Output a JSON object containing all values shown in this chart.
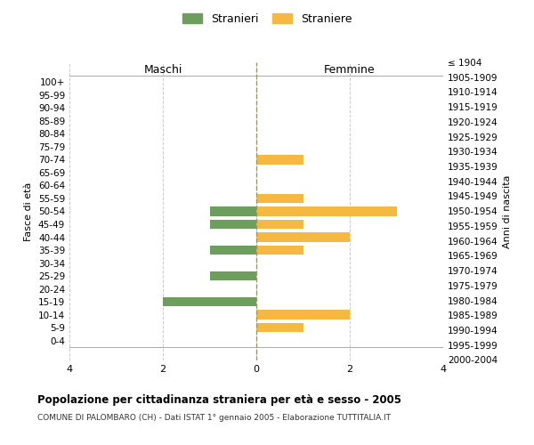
{
  "age_groups": [
    "100+",
    "95-99",
    "90-94",
    "85-89",
    "80-84",
    "75-79",
    "70-74",
    "65-69",
    "60-64",
    "55-59",
    "50-54",
    "45-49",
    "40-44",
    "35-39",
    "30-34",
    "25-29",
    "20-24",
    "15-19",
    "10-14",
    "5-9",
    "0-4"
  ],
  "birth_years": [
    "≤ 1904",
    "1905-1909",
    "1910-1914",
    "1915-1919",
    "1920-1924",
    "1925-1929",
    "1930-1934",
    "1935-1939",
    "1940-1944",
    "1945-1949",
    "1950-1954",
    "1955-1959",
    "1960-1964",
    "1965-1969",
    "1970-1974",
    "1975-1979",
    "1980-1984",
    "1985-1989",
    "1990-1994",
    "1995-1999",
    "2000-2004"
  ],
  "males": [
    0,
    0,
    0,
    0,
    0,
    0,
    0,
    0,
    0,
    0,
    -1,
    -1,
    0,
    -1,
    0,
    -1,
    0,
    -2,
    0,
    0,
    0
  ],
  "females": [
    0,
    0,
    0,
    0,
    0,
    0,
    1,
    0,
    0,
    1,
    3,
    1,
    2,
    1,
    0,
    0,
    0,
    0,
    2,
    1,
    0
  ],
  "male_color": "#6e9e5e",
  "female_color": "#f5b942",
  "xlim": [
    -4,
    4
  ],
  "xticks": [
    -4,
    -2,
    0,
    2,
    4
  ],
  "xticklabels": [
    "4",
    "2",
    "0",
    "2",
    "4"
  ],
  "title": "Popolazione per cittadinanza straniera per età e sesso - 2005",
  "subtitle": "COMUNE DI PALOMBARO (CH) - Dati ISTAT 1° gennaio 2005 - Elaborazione TUTTITALIA.IT",
  "ylabel_left": "Fasce di età",
  "ylabel_right": "Anni di nascita",
  "legend_stranieri": "Stranieri",
  "legend_straniere": "Straniere",
  "maschi_label": "Maschi",
  "femmine_label": "Femmine",
  "bg_color": "#ffffff",
  "grid_color": "#cccccc",
  "bar_height": 0.7
}
